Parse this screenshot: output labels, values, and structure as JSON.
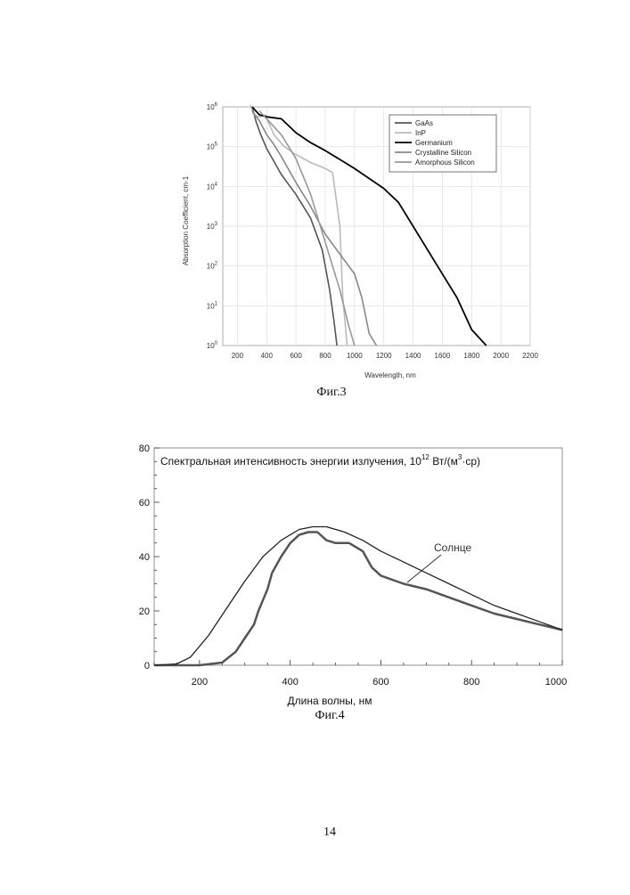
{
  "figure3": {
    "caption": "Фиг.3",
    "chart_data": {
      "type": "line",
      "xlabel": "Wavelength, nm",
      "ylabel": "Absorption Coefficient, cm-1",
      "xlim": [
        100,
        2200
      ],
      "ylim_log10": [
        0,
        4
      ],
      "x_ticks": [
        "200",
        "400",
        "600",
        "800",
        "1000",
        "1200",
        "1400",
        "1600",
        "1800",
        "2000",
        "2200"
      ],
      "y_ticks": [
        {
          "exp": 0,
          "base": "10",
          "sup": "0"
        },
        {
          "exp": 1,
          "base": "10",
          "sup": "1"
        },
        {
          "exp": 2,
          "base": "10",
          "sup": "2"
        },
        {
          "exp": 3,
          "base": "10",
          "sup": "3"
        },
        {
          "exp": 4,
          "base": "10",
          "sup": "4"
        },
        {
          "exp": 5,
          "base": "10",
          "sup": "5"
        },
        {
          "exp": 6,
          "base": "10",
          "sup": "6"
        }
      ],
      "legend_position": "top-right",
      "series": [
        {
          "name": "GaAs",
          "color": "#555555",
          "points": [
            [
              300,
              6.0
            ],
            [
              330,
              5.6
            ],
            [
              360,
              5.3
            ],
            [
              400,
              4.95
            ],
            [
              500,
              4.3
            ],
            [
              600,
              3.8
            ],
            [
              700,
              3.2
            ],
            [
              780,
              2.4
            ],
            [
              830,
              1.4
            ],
            [
              860,
              0.6
            ],
            [
              880,
              0.0
            ]
          ]
        },
        {
          "name": "InP",
          "color": "#bbbbbb",
          "points": [
            [
              290,
              6.05
            ],
            [
              310,
              5.8
            ],
            [
              350,
              5.75
            ],
            [
              390,
              5.8
            ],
            [
              450,
              5.3
            ],
            [
              520,
              5.0
            ],
            [
              600,
              4.8
            ],
            [
              700,
              4.6
            ],
            [
              800,
              4.45
            ],
            [
              850,
              4.35
            ],
            [
              900,
              3.0
            ],
            [
              920,
              1.2
            ],
            [
              950,
              0.0
            ]
          ]
        },
        {
          "name": "Germanium",
          "color": "#000000",
          "points": [
            [
              300,
              6.0
            ],
            [
              350,
              5.8
            ],
            [
              400,
              5.75
            ],
            [
              500,
              5.7
            ],
            [
              600,
              5.35
            ],
            [
              700,
              5.1
            ],
            [
              800,
              4.9
            ],
            [
              1000,
              4.45
            ],
            [
              1200,
              3.95
            ],
            [
              1300,
              3.6
            ],
            [
              1500,
              2.4
            ],
            [
              1700,
              1.2
            ],
            [
              1800,
              0.4
            ],
            [
              1900,
              0.0
            ]
          ]
        },
        {
          "name": "Crystalline Silicon",
          "color": "#888888",
          "points": [
            [
              300,
              5.9
            ],
            [
              350,
              5.65
            ],
            [
              400,
              5.3
            ],
            [
              450,
              5.05
            ],
            [
              500,
              4.75
            ],
            [
              600,
              4.1
            ],
            [
              700,
              3.5
            ],
            [
              800,
              2.8
            ],
            [
              900,
              2.3
            ],
            [
              1000,
              1.8
            ],
            [
              1050,
              1.2
            ],
            [
              1100,
              0.3
            ],
            [
              1150,
              0.0
            ]
          ]
        },
        {
          "name": "Amorphous Silicon",
          "color": "#999999",
          "points": [
            [
              350,
              5.9
            ],
            [
              400,
              5.7
            ],
            [
              500,
              5.3
            ],
            [
              600,
              4.7
            ],
            [
              700,
              3.8
            ],
            [
              800,
              2.6
            ],
            [
              900,
              1.4
            ],
            [
              960,
              0.5
            ],
            [
              1000,
              0.0
            ]
          ]
        }
      ]
    }
  },
  "figure4": {
    "caption": "Фиг.4",
    "annotation": "Солнце",
    "chart_data": {
      "type": "line",
      "title_main": "Спектральная интенсивность энергии излучения, 10",
      "title_exp1": "12",
      "title_units": " Вт/(м",
      "title_exp2": "3",
      "title_end": "·ср)",
      "xlabel": "Длина волны, нм",
      "xlim": [
        100,
        1000
      ],
      "ylim": [
        0,
        80
      ],
      "x_ticks": [
        "200",
        "400",
        "600",
        "800",
        "1000"
      ],
      "y_ticks": [
        "0",
        "20",
        "40",
        "60",
        "80"
      ],
      "series": [
        {
          "name": "Солнце",
          "color": "#555555",
          "width": 2.5,
          "points": [
            [
              100,
              0
            ],
            [
              200,
              0
            ],
            [
              250,
              1
            ],
            [
              280,
              5
            ],
            [
              300,
              10
            ],
            [
              320,
              15
            ],
            [
              330,
              20
            ],
            [
              340,
              24
            ],
            [
              350,
              28
            ],
            [
              360,
              34
            ],
            [
              380,
              40
            ],
            [
              400,
              45
            ],
            [
              420,
              48
            ],
            [
              440,
              49
            ],
            [
              460,
              49
            ],
            [
              480,
              46
            ],
            [
              500,
              45
            ],
            [
              530,
              45
            ],
            [
              560,
              42
            ],
            [
              580,
              36
            ],
            [
              600,
              33
            ],
            [
              650,
              30
            ],
            [
              700,
              28
            ],
            [
              750,
              25
            ],
            [
              800,
              22
            ],
            [
              850,
              19
            ],
            [
              900,
              17
            ],
            [
              950,
              15
            ],
            [
              1000,
              13
            ]
          ]
        },
        {
          "name": "",
          "color": "#222222",
          "width": 1.3,
          "points": [
            [
              100,
              0
            ],
            [
              150,
              0.5
            ],
            [
              180,
              3
            ],
            [
              220,
              11
            ],
            [
              260,
              21
            ],
            [
              300,
              31
            ],
            [
              340,
              40
            ],
            [
              380,
              46
            ],
            [
              420,
              50
            ],
            [
              450,
              51
            ],
            [
              480,
              51
            ],
            [
              520,
              49
            ],
            [
              560,
              46
            ],
            [
              600,
              42
            ],
            [
              650,
              38
            ],
            [
              700,
              34
            ],
            [
              750,
              30
            ],
            [
              800,
              26
            ],
            [
              850,
              22
            ],
            [
              900,
              19
            ],
            [
              950,
              16
            ],
            [
              1000,
              13
            ]
          ]
        }
      ]
    }
  },
  "page_number": "14"
}
